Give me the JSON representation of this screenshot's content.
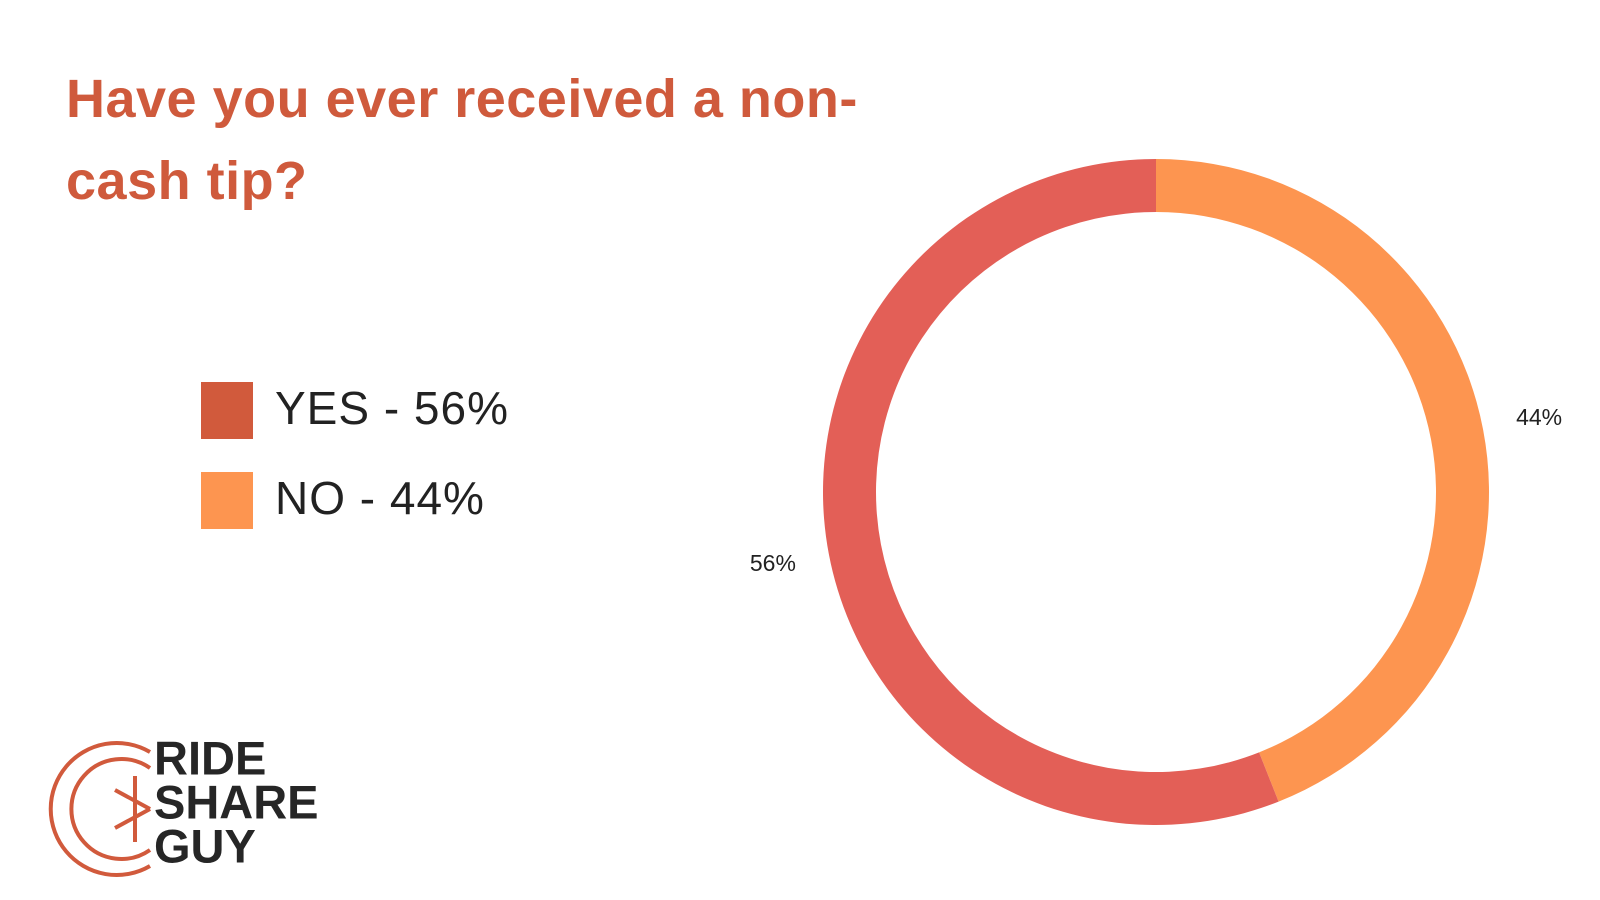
{
  "chart_data": {
    "type": "donut",
    "title": "Have you ever received a non-cash tip?",
    "categories": [
      "YES - 56%",
      "NO - 44%"
    ],
    "values": [
      56,
      44
    ],
    "value_labels": [
      "56%",
      "44%"
    ],
    "colors": [
      "#e35f57",
      "#fd9550"
    ],
    "legend_colors": [
      "#d15a3c",
      "#fd9550"
    ],
    "direction": "counterclockwise-from-top-yes"
  },
  "logo": {
    "lines": [
      "RIDE",
      "SHARE",
      "GUY"
    ]
  }
}
